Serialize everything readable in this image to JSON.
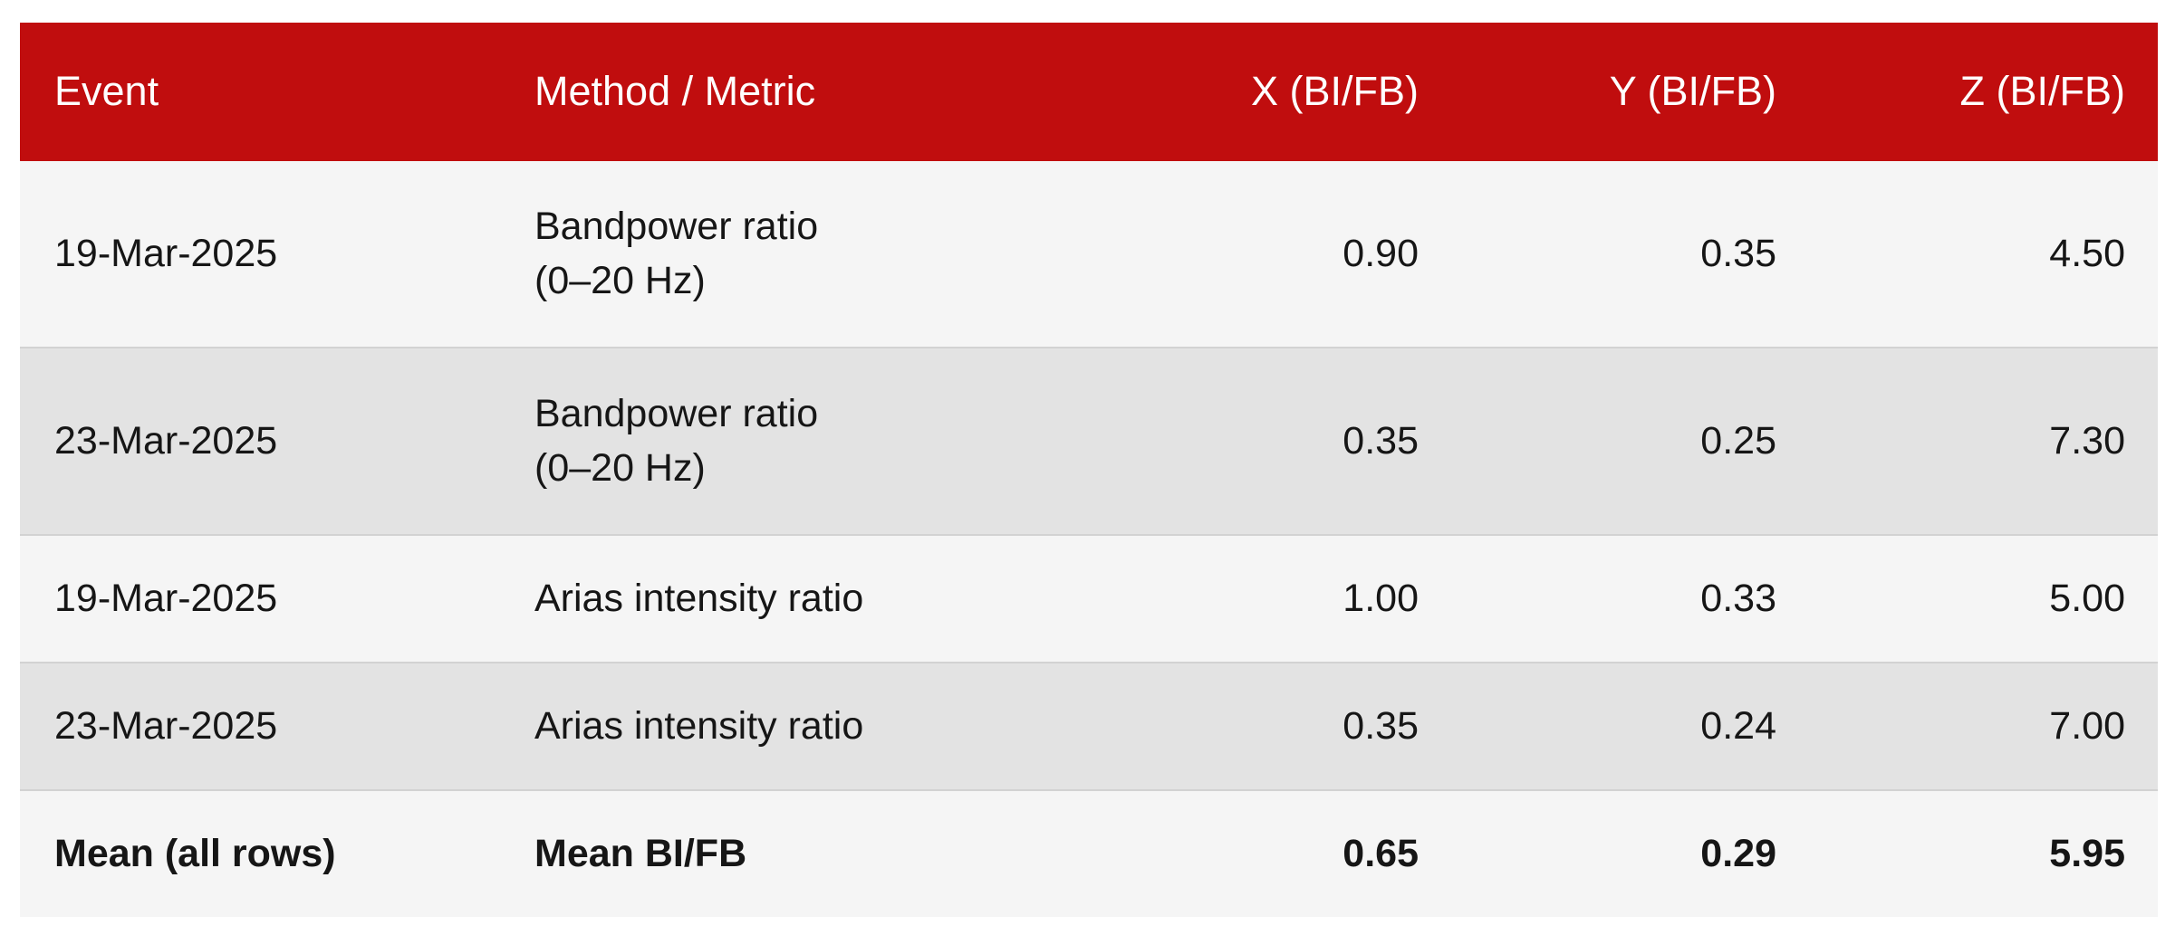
{
  "colors": {
    "header_bg": "#c00d0e",
    "header_text": "#ffffff",
    "row_light": "#f5f5f5",
    "row_dark": "#e3e3e3",
    "row_divider": "#d2d2d2",
    "body_text": "#161616",
    "page_bg": "#ffffff"
  },
  "table": {
    "columns": [
      "Event",
      "Method / Metric",
      "X (BI/FB)",
      "Y (BI/FB)",
      "Z (BI/FB)"
    ],
    "rows": [
      {
        "event": "19-Mar-2025",
        "method": "Bandpower ratio\n(0–20 Hz)",
        "x": "0.90",
        "y": "0.35",
        "z": "4.50"
      },
      {
        "event": "23-Mar-2025",
        "method": "Bandpower ratio\n(0–20 Hz)",
        "x": "0.35",
        "y": "0.25",
        "z": "7.30"
      },
      {
        "event": "19-Mar-2025",
        "method": "Arias intensity ratio",
        "x": "1.00",
        "y": "0.33",
        "z": "5.00"
      },
      {
        "event": "23-Mar-2025",
        "method": "Arias intensity ratio",
        "x": "0.35",
        "y": "0.24",
        "z": "7.00"
      }
    ],
    "summary_row": {
      "event": "Mean (all rows)",
      "method": "Mean BI/FB",
      "x": "0.65",
      "y": "0.29",
      "z": "5.95"
    }
  },
  "chart_data": {
    "type": "table",
    "columns": [
      "Event",
      "Method / Metric",
      "X (BI/FB)",
      "Y (BI/FB)",
      "Z (BI/FB)"
    ],
    "rows": [
      [
        "19-Mar-2025",
        "Bandpower ratio (0–20 Hz)",
        0.9,
        0.35,
        4.5
      ],
      [
        "23-Mar-2025",
        "Bandpower ratio (0–20 Hz)",
        0.35,
        0.25,
        7.3
      ],
      [
        "19-Mar-2025",
        "Arias intensity ratio",
        1.0,
        0.33,
        5.0
      ],
      [
        "23-Mar-2025",
        "Arias intensity ratio",
        0.35,
        0.24,
        7.0
      ],
      [
        "Mean (all rows)",
        "Mean BI/FB",
        0.65,
        0.29,
        5.95
      ]
    ],
    "notes": "Red header row; alternating light/dark gray body rows; bold mean summary row; numeric columns right-aligned"
  }
}
